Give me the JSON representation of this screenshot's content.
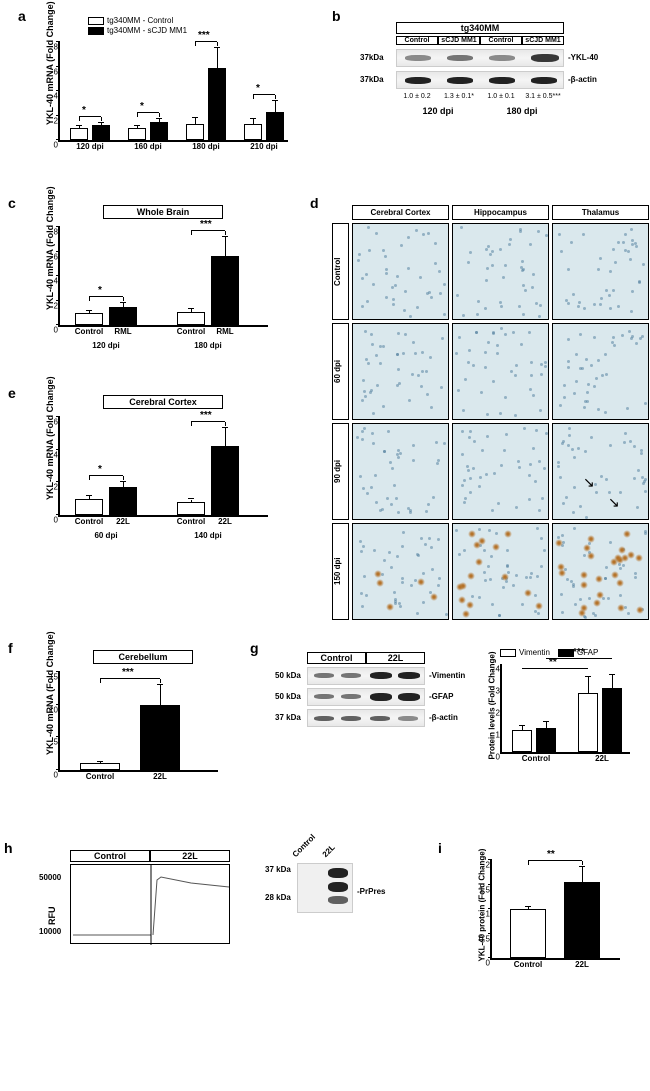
{
  "panel_a": {
    "label": "a",
    "yaxis": "YKL-40 mRNA (Fold Change)",
    "legend": [
      {
        "swatch": "#ffffff",
        "text": "tg340MM - Control"
      },
      {
        "swatch": "#000000",
        "text": "tg340MM - sCJD MM1"
      }
    ],
    "yticks": [
      0,
      2,
      4,
      6,
      8
    ],
    "groups": [
      {
        "x": "120 dpi",
        "ctrl": 1.0,
        "ctrl_err": 0.15,
        "exp": 1.2,
        "exp_err": 0.15,
        "sig": "*"
      },
      {
        "x": "160 dpi",
        "ctrl": 1.0,
        "ctrl_err": 0.15,
        "exp": 1.5,
        "exp_err": 0.2,
        "sig": "*"
      },
      {
        "x": "180 dpi",
        "ctrl": 1.3,
        "ctrl_err": 0.5,
        "exp": 5.9,
        "exp_err": 1.6,
        "sig": "***"
      },
      {
        "x": "210 dpi",
        "ctrl": 1.3,
        "ctrl_err": 0.4,
        "exp": 2.3,
        "exp_err": 0.9,
        "sig": "*"
      }
    ]
  },
  "panel_b": {
    "label": "b",
    "header": "tg340MM",
    "cols": [
      "Control",
      "sCJD MM1",
      "Control",
      "sCJD MM1"
    ],
    "size_labels": [
      "37kDa",
      "37kDa"
    ],
    "row_labels": [
      "-YKL-40",
      "-β-actin"
    ],
    "quant": [
      "1.0 ± 0.2",
      "1.3 ± 0.1*",
      "1.0 ± 0.1",
      "3.1 ± 0.5***"
    ],
    "bottom": [
      "120 dpi",
      "180 dpi"
    ]
  },
  "panel_c": {
    "label": "c",
    "title": "Whole Brain",
    "yaxis": "YKL-40 mRNA (Fold Change)",
    "yticks": [
      0,
      2,
      4,
      6,
      8
    ],
    "groups": [
      {
        "x": "120 dpi",
        "bars": [
          "Control",
          "RML"
        ],
        "ctrl": 1.0,
        "ctrl_err": 0.15,
        "exp": 1.5,
        "exp_err": 0.3,
        "sig": "*"
      },
      {
        "x": "180 dpi",
        "bars": [
          "Control",
          "RML"
        ],
        "ctrl": 1.1,
        "ctrl_err": 0.2,
        "exp": 5.6,
        "exp_err": 1.6,
        "sig": "***"
      }
    ]
  },
  "panel_d": {
    "label": "d",
    "cols": [
      "Cerebral Cortex",
      "Hippocampus",
      "Thalamus"
    ],
    "rows": [
      "Control",
      "60 dpi",
      "90 dpi",
      "150 dpi"
    ]
  },
  "panel_e": {
    "label": "e",
    "title": "Cerebral Cortex",
    "yaxis": "YKL-40 mRNA (Fold Change)",
    "yticks": [
      0,
      2,
      4,
      6
    ],
    "groups": [
      {
        "x": "60 dpi",
        "bars": [
          "Control",
          "22L"
        ],
        "ctrl": 1.0,
        "ctrl_err": 0.15,
        "exp": 1.7,
        "exp_err": 0.35,
        "sig": "*"
      },
      {
        "x": "140 dpi",
        "bars": [
          "Control",
          "22L"
        ],
        "ctrl": 0.8,
        "ctrl_err": 0.15,
        "exp": 4.2,
        "exp_err": 1.1,
        "sig": "***"
      }
    ]
  },
  "panel_f": {
    "label": "f",
    "title": "Cerebellum",
    "yaxis": "YKL-40 mRNA (Fold Change)",
    "yticks": [
      0,
      5,
      10,
      15
    ],
    "bars": [
      "Control",
      "22L"
    ],
    "ctrl": 1.0,
    "ctrl_err": 0.3,
    "exp": 10.0,
    "exp_err": 3.0,
    "sig": "***"
  },
  "panel_g": {
    "label": "g",
    "wb_cols": [
      "Control",
      "22L"
    ],
    "size_labels": [
      "50 kDa",
      "50 kDa",
      "37 kDa"
    ],
    "row_labels": [
      "-Vimentin",
      "-GFAP",
      "-β-actin"
    ],
    "legend": [
      {
        "swatch": "#ffffff",
        "text": "Vimentin"
      },
      {
        "swatch": "#000000",
        "text": "GFAP"
      }
    ],
    "yaxis": "Protein levels (Fold Change)",
    "yticks": [
      0,
      1,
      2,
      3,
      4
    ],
    "groups": [
      {
        "x": "Control",
        "a": 1.0,
        "a_err": 0.2,
        "b": 1.1,
        "b_err": 0.25
      },
      {
        "x": "22L",
        "a": 2.7,
        "a_err": 0.7,
        "b": 2.9,
        "b_err": 0.6
      }
    ],
    "sig": [
      "**",
      "***"
    ]
  },
  "panel_h": {
    "label": "h",
    "cols": [
      "Control",
      "22L"
    ],
    "yaxis": "RFU",
    "yticks": [
      10000,
      50000
    ],
    "wb_cols": [
      "Control",
      "22L"
    ],
    "size_labels": [
      "37 kDa",
      "28 kDa"
    ],
    "row_label": "-PrPres"
  },
  "panel_i": {
    "label": "i",
    "yaxis": "YKL-40 protein (Fold Change)",
    "yticks": [
      0.0,
      0.5,
      1.0,
      1.5,
      2.0
    ],
    "bars": [
      "Control",
      "22L"
    ],
    "ctrl": 1.0,
    "ctrl_err": 0.05,
    "exp": 1.55,
    "exp_err": 0.3,
    "sig": "**"
  }
}
